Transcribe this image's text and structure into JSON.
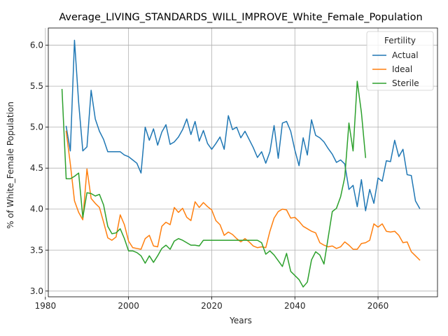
{
  "chart_data": {
    "type": "line",
    "title": "Average_LIVING_STANDARDS_WILL_IMPROVE_White_Female_Population",
    "xlabel": "Years",
    "ylabel": "% of White_Female Population",
    "xlim": [
      1980.7,
      2074.3
    ],
    "ylim": [
      2.93,
      6.21
    ],
    "xticks": [
      1980,
      2000,
      2020,
      2040,
      2060
    ],
    "yticks": [
      3.0,
      3.5,
      4.0,
      4.5,
      5.0,
      5.5,
      6.0
    ],
    "xtick_labels": [
      "1980",
      "2000",
      "2020",
      "2040",
      "2060"
    ],
    "ytick_labels": [
      "3.0",
      "3.5",
      "4.0",
      "4.5",
      "5.0",
      "5.5",
      "6.0"
    ],
    "grid": true,
    "legend": {
      "title": "Fertility",
      "placement": "top-right"
    },
    "series": [
      {
        "name": "Actual",
        "color": "#1f77b4",
        "x": [
          1985,
          1986,
          1987,
          1988,
          1989,
          1990,
          1991,
          1992,
          1993,
          1994,
          1995,
          1996,
          1997,
          1998,
          1999,
          2000,
          2001,
          2002,
          2003,
          2004,
          2005,
          2006,
          2007,
          2008,
          2009,
          2010,
          2011,
          2012,
          2013,
          2014,
          2015,
          2016,
          2017,
          2018,
          2019,
          2020,
          2021,
          2022,
          2023,
          2024,
          2025,
          2026,
          2027,
          2028,
          2029,
          2030,
          2031,
          2032,
          2033,
          2034,
          2035,
          2036,
          2037,
          2038,
          2039,
          2040,
          2041,
          2042,
          2043,
          2044,
          2045,
          2046,
          2047,
          2048,
          2049,
          2050,
          2051,
          2052,
          2053,
          2054,
          2055,
          2056,
          2057,
          2058,
          2059,
          2060,
          2061,
          2062,
          2063,
          2064,
          2065,
          2066,
          2067,
          2068,
          2069,
          2070
        ],
        "values": [
          5.01,
          4.71,
          6.06,
          5.3,
          4.71,
          4.76,
          5.45,
          5.1,
          4.95,
          4.85,
          4.7,
          4.7,
          4.7,
          4.7,
          4.66,
          4.64,
          4.6,
          4.56,
          4.44,
          5.0,
          4.84,
          4.98,
          4.78,
          4.94,
          5.03,
          4.79,
          4.82,
          4.88,
          4.97,
          5.1,
          4.91,
          5.07,
          4.83,
          4.96,
          4.8,
          4.73,
          4.8,
          4.88,
          4.73,
          5.14,
          4.97,
          5.0,
          4.87,
          4.95,
          4.85,
          4.75,
          4.63,
          4.7,
          4.56,
          4.7,
          5.02,
          4.62,
          5.05,
          5.07,
          4.95,
          4.72,
          4.53,
          4.87,
          4.66,
          5.09,
          4.9,
          4.87,
          4.82,
          4.74,
          4.67,
          4.57,
          4.6,
          4.55,
          4.24,
          4.29,
          4.03,
          4.36,
          3.98,
          4.24,
          4.07,
          4.38,
          4.34,
          4.59,
          4.58,
          4.84,
          4.64,
          4.73,
          4.42,
          4.41,
          4.1,
          4.01
        ]
      },
      {
        "name": "Ideal",
        "color": "#ff7f0e",
        "x": [
          1985,
          1986,
          1987,
          1988,
          1989,
          1990,
          1991,
          1992,
          1993,
          1994,
          1995,
          1996,
          1997,
          1998,
          1999,
          2000,
          2001,
          2002,
          2003,
          2004,
          2005,
          2006,
          2007,
          2008,
          2009,
          2010,
          2011,
          2012,
          2013,
          2014,
          2015,
          2016,
          2017,
          2018,
          2019,
          2020,
          2021,
          2022,
          2023,
          2024,
          2025,
          2026,
          2027,
          2028,
          2029,
          2030,
          2031,
          2032,
          2033,
          2034,
          2035,
          2036,
          2037,
          2038,
          2039,
          2040,
          2041,
          2042,
          2043,
          2044,
          2045,
          2046,
          2047,
          2048,
          2049,
          2050,
          2051,
          2052,
          2053,
          2054,
          2055,
          2056,
          2057,
          2058,
          2059,
          2060,
          2061,
          2062,
          2063,
          2064,
          2065,
          2066,
          2067,
          2068,
          2069,
          2070
        ],
        "values": [
          4.95,
          4.55,
          4.1,
          3.96,
          3.87,
          4.49,
          4.13,
          4.07,
          4.02,
          3.84,
          3.65,
          3.62,
          3.66,
          3.93,
          3.81,
          3.61,
          3.53,
          3.52,
          3.51,
          3.64,
          3.68,
          3.55,
          3.54,
          3.79,
          3.84,
          3.81,
          4.02,
          3.96,
          4.01,
          3.9,
          3.86,
          4.09,
          4.02,
          4.08,
          4.03,
          3.99,
          3.86,
          3.81,
          3.68,
          3.72,
          3.69,
          3.64,
          3.6,
          3.64,
          3.6,
          3.55,
          3.53,
          3.54,
          3.53,
          3.73,
          3.89,
          3.97,
          4.0,
          3.99,
          3.89,
          3.9,
          3.85,
          3.79,
          3.76,
          3.73,
          3.71,
          3.59,
          3.56,
          3.54,
          3.55,
          3.52,
          3.54,
          3.6,
          3.56,
          3.51,
          3.51,
          3.58,
          3.59,
          3.62,
          3.82,
          3.78,
          3.82,
          3.73,
          3.72,
          3.73,
          3.68,
          3.59,
          3.6,
          3.48,
          3.43,
          3.38
        ]
      },
      {
        "name": "Sterile",
        "color": "#2ca02c",
        "x": [
          1984,
          1985,
          1986,
          1987,
          1988,
          1989,
          1990,
          1991,
          1992,
          1993,
          1994,
          1995,
          1996,
          1997,
          1998,
          1999,
          2000,
          2001,
          2002,
          2003,
          2004,
          2005,
          2006,
          2007,
          2008,
          2009,
          2010,
          2011,
          2012,
          2013,
          2014,
          2015,
          2016,
          2017,
          2018,
          2019,
          2020,
          2021,
          2022,
          2023,
          2024,
          2025,
          2026,
          2027,
          2028,
          2029,
          2030,
          2031,
          2032,
          2033,
          2034,
          2035,
          2036,
          2037,
          2038,
          2039,
          2040,
          2041,
          2042,
          2043,
          2044,
          2045,
          2046,
          2047,
          2048,
          2049,
          2050,
          2051,
          2052,
          2053,
          2054,
          2055,
          2056,
          2057
        ],
        "values": [
          5.46,
          4.37,
          4.37,
          4.4,
          4.44,
          3.9,
          4.2,
          4.19,
          4.16,
          4.18,
          4.05,
          3.79,
          3.7,
          3.71,
          3.76,
          3.64,
          3.49,
          3.49,
          3.47,
          3.43,
          3.34,
          3.43,
          3.35,
          3.43,
          3.52,
          3.56,
          3.51,
          3.61,
          3.64,
          3.62,
          3.59,
          3.56,
          3.56,
          3.55,
          3.62,
          3.62,
          3.62,
          3.62,
          3.62,
          3.62,
          3.62,
          3.62,
          3.62,
          3.62,
          3.62,
          3.62,
          3.62,
          3.62,
          3.59,
          3.45,
          3.49,
          3.44,
          3.37,
          3.3,
          3.46,
          3.24,
          3.19,
          3.14,
          3.05,
          3.11,
          3.38,
          3.48,
          3.44,
          3.33,
          3.65,
          3.97,
          4.01,
          4.15,
          4.39,
          5.05,
          4.71,
          5.56,
          5.18,
          4.63
        ]
      }
    ]
  }
}
